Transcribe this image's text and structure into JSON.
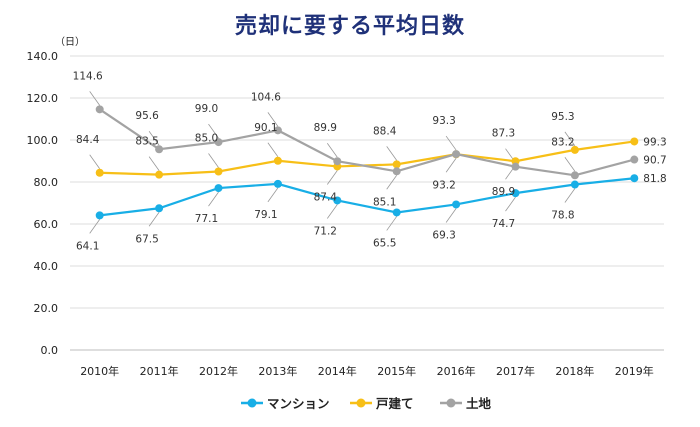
{
  "chart_data": {
    "type": "line",
    "title": "売却に要する平均日数",
    "ylabel": "（日）",
    "ylim": [
      0,
      140
    ],
    "yticks": [
      "0.0",
      "20.0",
      "40.0",
      "60.0",
      "80.0",
      "100.0",
      "120.0",
      "140.0"
    ],
    "categories": [
      "2010年",
      "2011年",
      "2012年",
      "2013年",
      "2014年",
      "2015年",
      "2016年",
      "2017年",
      "2018年",
      "2019年"
    ],
    "grid": true,
    "legend": "bottom",
    "series": [
      {
        "name": "マンション",
        "color": "#18aee6",
        "values": [
          64.1,
          67.5,
          77.1,
          79.1,
          71.2,
          65.5,
          69.3,
          74.7,
          78.8,
          81.8
        ]
      },
      {
        "name": "戸建て",
        "color": "#f7bf17",
        "values": [
          84.4,
          83.5,
          85.0,
          90.1,
          87.4,
          88.4,
          93.2,
          89.9,
          95.3,
          99.3
        ]
      },
      {
        "name": "土地",
        "color": "#a3a3a3",
        "values": [
          114.6,
          95.6,
          99.0,
          104.6,
          89.9,
          85.1,
          93.3,
          87.3,
          83.2,
          90.7
        ]
      }
    ]
  }
}
